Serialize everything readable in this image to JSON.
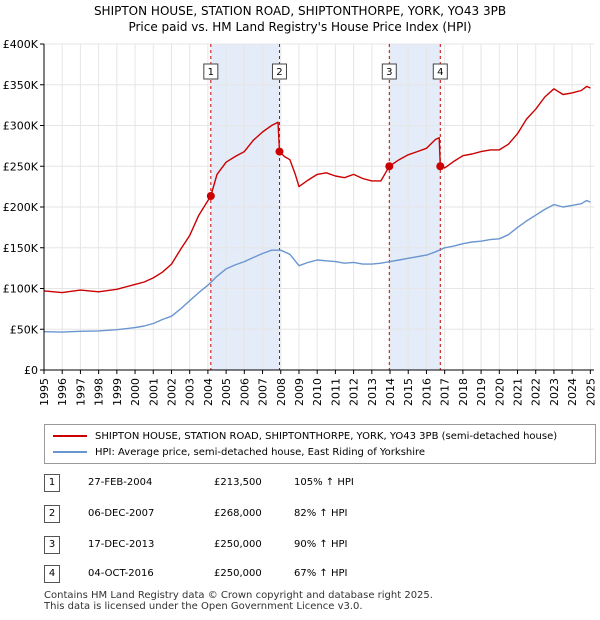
{
  "title_line1": "SHIPTON HOUSE, STATION ROAD, SHIPTONTHORPE, YORK, YO43 3PB",
  "title_line2": "Price paid vs. HM Land Registry's House Price Index (HPI)",
  "colors": {
    "property": "#cc0000",
    "hpi": "#6a96cf",
    "shade": "#dde6f8",
    "marker_dash": "#cc0000"
  },
  "legend": {
    "property_label": "SHIPTON HOUSE, STATION ROAD, SHIPTONTHORPE, YORK, YO43 3PB (semi-detached house)",
    "hpi_label": "HPI: Average price, semi-detached house, East Riding of Yorkshire"
  },
  "sales": [
    {
      "num": "1",
      "date": "27-FEB-2004",
      "price": "£213,500",
      "hpi": "105% ↑ HPI"
    },
    {
      "num": "2",
      "date": "06-DEC-2007",
      "price": "£268,000",
      "hpi": "82% ↑ HPI"
    },
    {
      "num": "3",
      "date": "17-DEC-2013",
      "price": "£250,000",
      "hpi": "90% ↑ HPI"
    },
    {
      "num": "4",
      "date": "04-OCT-2016",
      "price": "£250,000",
      "hpi": "67% ↑ HPI"
    }
  ],
  "footer_line1": "Contains HM Land Registry data © Crown copyright and database right 2025.",
  "footer_line2": "This data is licensed under the Open Government Licence v3.0.",
  "chart_data": {
    "type": "line",
    "xlim": [
      1995,
      2025.2
    ],
    "ylim": [
      0,
      400000
    ],
    "y_ticks": [
      0,
      50000,
      100000,
      150000,
      200000,
      250000,
      300000,
      350000,
      400000
    ],
    "y_tick_labels": [
      "£0",
      "£50K",
      "£100K",
      "£150K",
      "£200K",
      "£250K",
      "£300K",
      "£350K",
      "£400K"
    ],
    "x_ticks": [
      1995,
      1996,
      1997,
      1998,
      1999,
      2000,
      2001,
      2002,
      2003,
      2004,
      2005,
      2006,
      2007,
      2008,
      2009,
      2010,
      2011,
      2012,
      2013,
      2014,
      2015,
      2016,
      2017,
      2018,
      2019,
      2020,
      2021,
      2022,
      2023,
      2024,
      2025
    ],
    "shaded_ranges": [
      [
        2004.16,
        2007.93
      ],
      [
        2013.96,
        2016.76
      ]
    ],
    "sale_points": [
      {
        "label": "1",
        "x": 2004.16,
        "y": 213500
      },
      {
        "label": "2",
        "x": 2007.93,
        "y": 268000
      },
      {
        "label": "3",
        "x": 2013.96,
        "y": 250000
      },
      {
        "label": "4",
        "x": 2016.76,
        "y": 250000
      }
    ],
    "series": [
      {
        "name": "SHIPTON HOUSE, STATION ROAD, SHIPTONTHORPE, YORK, YO43 3PB (semi-detached house)",
        "points": [
          [
            1995.0,
            97000
          ],
          [
            1996.0,
            95000
          ],
          [
            1997.0,
            98000
          ],
          [
            1998.0,
            96000
          ],
          [
            1999.0,
            99000
          ],
          [
            2000.0,
            105000
          ],
          [
            2000.5,
            108000
          ],
          [
            2001.0,
            113000
          ],
          [
            2001.5,
            120000
          ],
          [
            2002.0,
            130000
          ],
          [
            2002.5,
            148000
          ],
          [
            2003.0,
            165000
          ],
          [
            2003.5,
            190000
          ],
          [
            2004.16,
            213500
          ],
          [
            2004.5,
            240000
          ],
          [
            2005.0,
            255000
          ],
          [
            2005.5,
            262000
          ],
          [
            2006.0,
            268000
          ],
          [
            2006.5,
            282000
          ],
          [
            2007.0,
            292000
          ],
          [
            2007.5,
            300000
          ],
          [
            2007.85,
            304000
          ],
          [
            2007.93,
            268000
          ],
          [
            2008.2,
            262000
          ],
          [
            2008.5,
            258000
          ],
          [
            2008.8,
            240000
          ],
          [
            2009.0,
            225000
          ],
          [
            2009.5,
            233000
          ],
          [
            2010.0,
            240000
          ],
          [
            2010.5,
            242000
          ],
          [
            2011.0,
            238000
          ],
          [
            2011.5,
            236000
          ],
          [
            2012.0,
            240000
          ],
          [
            2012.5,
            235000
          ],
          [
            2013.0,
            232000
          ],
          [
            2013.5,
            232000
          ],
          [
            2013.96,
            250000
          ],
          [
            2014.5,
            258000
          ],
          [
            2015.0,
            264000
          ],
          [
            2015.5,
            268000
          ],
          [
            2016.0,
            272000
          ],
          [
            2016.5,
            283000
          ],
          [
            2016.7,
            285000
          ],
          [
            2016.76,
            250000
          ],
          [
            2017.0,
            248000
          ],
          [
            2017.5,
            256000
          ],
          [
            2018.0,
            263000
          ],
          [
            2018.5,
            265000
          ],
          [
            2019.0,
            268000
          ],
          [
            2019.5,
            270000
          ],
          [
            2020.0,
            270000
          ],
          [
            2020.5,
            277000
          ],
          [
            2021.0,
            290000
          ],
          [
            2021.5,
            308000
          ],
          [
            2022.0,
            320000
          ],
          [
            2022.5,
            335000
          ],
          [
            2023.0,
            345000
          ],
          [
            2023.5,
            338000
          ],
          [
            2024.0,
            340000
          ],
          [
            2024.5,
            343000
          ],
          [
            2024.8,
            348000
          ],
          [
            2025.0,
            346000
          ]
        ]
      },
      {
        "name": "HPI: Average price, semi-detached house, East Riding of Yorkshire",
        "points": [
          [
            1995.0,
            47000
          ],
          [
            1996.0,
            46500
          ],
          [
            1997.0,
            47500
          ],
          [
            1998.0,
            48000
          ],
          [
            1999.0,
            49500
          ],
          [
            2000.0,
            52000
          ],
          [
            2000.5,
            54000
          ],
          [
            2001.0,
            57000
          ],
          [
            2001.5,
            62000
          ],
          [
            2002.0,
            66000
          ],
          [
            2002.5,
            75000
          ],
          [
            2003.0,
            85000
          ],
          [
            2003.5,
            95000
          ],
          [
            2004.0,
            104000
          ],
          [
            2004.5,
            115000
          ],
          [
            2005.0,
            124000
          ],
          [
            2005.5,
            129000
          ],
          [
            2006.0,
            133000
          ],
          [
            2006.5,
            138000
          ],
          [
            2007.0,
            143000
          ],
          [
            2007.5,
            147000
          ],
          [
            2008.0,
            147000
          ],
          [
            2008.5,
            142000
          ],
          [
            2009.0,
            128000
          ],
          [
            2009.5,
            132000
          ],
          [
            2010.0,
            135000
          ],
          [
            2010.5,
            134000
          ],
          [
            2011.0,
            133000
          ],
          [
            2011.5,
            131000
          ],
          [
            2012.0,
            132000
          ],
          [
            2012.5,
            130000
          ],
          [
            2013.0,
            130000
          ],
          [
            2013.5,
            131000
          ],
          [
            2014.0,
            133000
          ],
          [
            2014.5,
            135000
          ],
          [
            2015.0,
            137000
          ],
          [
            2015.5,
            139000
          ],
          [
            2016.0,
            141000
          ],
          [
            2016.5,
            145000
          ],
          [
            2017.0,
            150000
          ],
          [
            2017.5,
            152000
          ],
          [
            2018.0,
            155000
          ],
          [
            2018.5,
            157000
          ],
          [
            2019.0,
            158000
          ],
          [
            2019.5,
            160000
          ],
          [
            2020.0,
            161000
          ],
          [
            2020.5,
            166000
          ],
          [
            2021.0,
            175000
          ],
          [
            2021.5,
            183000
          ],
          [
            2022.0,
            190000
          ],
          [
            2022.5,
            197000
          ],
          [
            2023.0,
            203000
          ],
          [
            2023.5,
            200000
          ],
          [
            2024.0,
            202000
          ],
          [
            2024.5,
            204000
          ],
          [
            2024.8,
            208000
          ],
          [
            2025.0,
            206000
          ]
        ]
      }
    ]
  }
}
